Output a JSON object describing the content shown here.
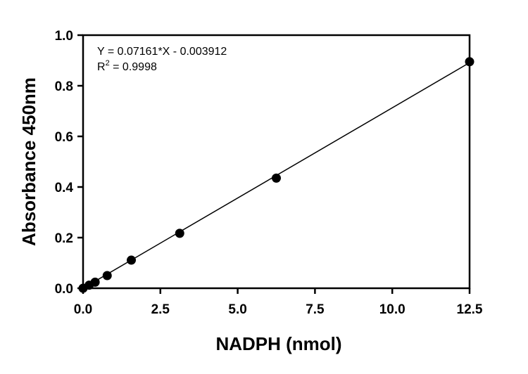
{
  "chart_data": {
    "type": "scatter",
    "xlabel": "NADPH (nmol)",
    "ylabel": "Absorbance 450nm",
    "xlim": [
      0,
      12.5
    ],
    "ylim": [
      0,
      1.0
    ],
    "xticks": [
      "0.0",
      "2.5",
      "5.0",
      "7.5",
      "10.0",
      "12.5"
    ],
    "yticks": [
      "0.0",
      "0.2",
      "0.4",
      "0.6",
      "0.8",
      "1.0"
    ],
    "grid": false,
    "points": [
      {
        "x": 0,
        "y": 0.0
      },
      {
        "x": 0.195,
        "y": 0.012
      },
      {
        "x": 0.39,
        "y": 0.024
      },
      {
        "x": 0.78,
        "y": 0.05
      },
      {
        "x": 1.56,
        "y": 0.111
      },
      {
        "x": 3.125,
        "y": 0.217
      },
      {
        "x": 6.25,
        "y": 0.435
      },
      {
        "x": 12.5,
        "y": 0.895
      }
    ],
    "fit": {
      "slope": 0.07161,
      "intercept": -0.003912
    },
    "annotation": {
      "equation": "Y = 0.07161*X - 0.003912",
      "r2_prefix": "R",
      "r2_sup": "2",
      "r2_value": " = 0.9998"
    }
  }
}
